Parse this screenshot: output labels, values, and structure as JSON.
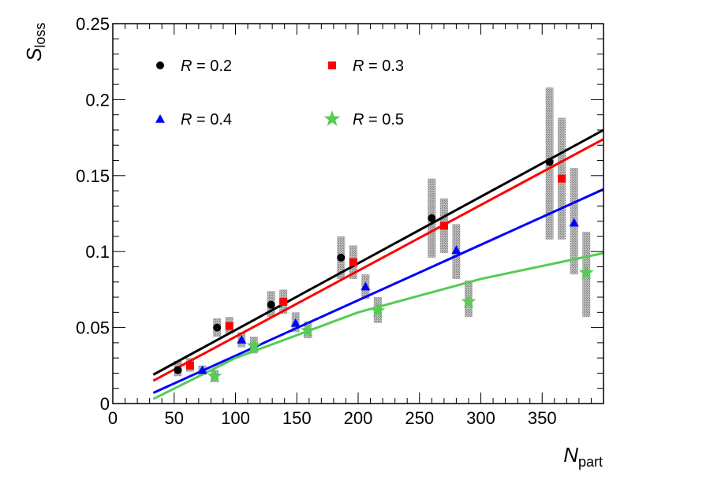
{
  "chart_data": {
    "type": "scatter",
    "xlabel": {
      "main": "N",
      "sub": "part"
    },
    "ylabel": {
      "main": "S",
      "sub": "loss"
    },
    "xlim": [
      0,
      400
    ],
    "ylim": [
      0,
      0.25
    ],
    "xticks": [
      0,
      50,
      100,
      150,
      200,
      250,
      300,
      350
    ],
    "xtick_labels": [
      "0",
      "50",
      "100",
      "150",
      "200",
      "250",
      "300",
      "350"
    ],
    "yticks": [
      0,
      0.05,
      0.1,
      0.15,
      0.2,
      0.25
    ],
    "ytick_labels": [
      "0",
      "0.05",
      "0.1",
      "0.15",
      "0.2",
      "0.25"
    ],
    "series": [
      {
        "name": "R = 0.2",
        "var": "R",
        "value": "0.2",
        "color": "#000000",
        "marker": "circle",
        "x": [
          53,
          85,
          129,
          186,
          260,
          356
        ],
        "y": [
          0.022,
          0.05,
          0.065,
          0.096,
          0.122,
          0.159
        ],
        "sys_low": [
          0.018,
          0.044,
          0.057,
          0.082,
          0.096,
          0.108
        ],
        "sys_high": [
          0.028,
          0.056,
          0.074,
          0.11,
          0.148,
          0.208
        ],
        "fit": [
          [
            33,
            0.019
          ],
          [
            400,
            0.18
          ]
        ]
      },
      {
        "name": "R = 0.3",
        "var": "R",
        "value": "0.3",
        "color": "#ff0000",
        "marker": "square",
        "x": [
          63,
          95,
          139,
          196,
          270,
          366
        ],
        "y": [
          0.025,
          0.051,
          0.067,
          0.093,
          0.117,
          0.148
        ],
        "sys_low": [
          0.021,
          0.046,
          0.059,
          0.082,
          0.099,
          0.108
        ],
        "sys_high": [
          0.03,
          0.057,
          0.075,
          0.104,
          0.135,
          0.188
        ],
        "fit": [
          [
            33,
            0.015
          ],
          [
            400,
            0.174
          ]
        ]
      },
      {
        "name": "R = 0.4",
        "var": "R",
        "value": "0.4",
        "color": "#0000ff",
        "marker": "triangle",
        "x": [
          73,
          105,
          149,
          206,
          280,
          376
        ],
        "y": [
          0.022,
          0.042,
          0.053,
          0.077,
          0.101,
          0.119
        ],
        "sys_low": [
          0.019,
          0.037,
          0.047,
          0.069,
          0.082,
          0.085
        ],
        "sys_high": [
          0.025,
          0.047,
          0.06,
          0.085,
          0.118,
          0.155
        ],
        "fit": [
          [
            33,
            0.007
          ],
          [
            400,
            0.141
          ]
        ]
      },
      {
        "name": "R = 0.5",
        "var": "R",
        "value": "0.5",
        "color": "#55cc55",
        "marker": "star",
        "x": [
          83,
          115,
          159,
          216,
          290,
          386
        ],
        "y": [
          0.018,
          0.038,
          0.048,
          0.061,
          0.067,
          0.086
        ],
        "sys_low": [
          0.014,
          0.033,
          0.043,
          0.053,
          0.057,
          0.057
        ],
        "sys_high": [
          0.022,
          0.044,
          0.054,
          0.07,
          0.081,
          0.113
        ],
        "fit": [
          [
            33,
            0.003
          ],
          [
            100,
            0.03
          ],
          [
            200,
            0.06
          ],
          [
            300,
            0.082
          ],
          [
            400,
            0.099
          ]
        ]
      }
    ]
  }
}
